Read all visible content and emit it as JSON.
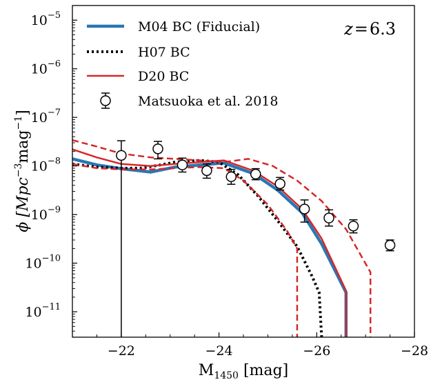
{
  "chart_data": {
    "type": "line",
    "annotation": {
      "prefix": "z",
      "eq": "=",
      "value": "6.3"
    },
    "xlabel": {
      "main": "M",
      "sub": "1450",
      "rest": " [mag]"
    },
    "ylabel": {
      "pre": "ϕ [Mpc",
      "sup1": "−3",
      "mid": "mag",
      "sup2": "−1",
      "post": "]"
    },
    "xlim": [
      -21,
      -28
    ],
    "ylim": [
      3e-12,
      2e-05
    ],
    "yscale": "log",
    "xticks": [
      -22,
      -24,
      -26,
      -28
    ],
    "xtick_labels": [
      "−22",
      "−24",
      "−26",
      "−28"
    ],
    "yticks": [
      {
        "base": "10",
        "exp": "−11",
        "value": 1e-11
      },
      {
        "base": "10",
        "exp": "−10",
        "value": 1e-10
      },
      {
        "base": "10",
        "exp": "−9",
        "value": 1e-09
      },
      {
        "base": "10",
        "exp": "−8",
        "value": 1e-08
      },
      {
        "base": "10",
        "exp": "−7",
        "value": 1e-07
      },
      {
        "base": "10",
        "exp": "−6",
        "value": 1e-06
      },
      {
        "base": "10",
        "exp": "−5",
        "value": 1e-05
      }
    ],
    "legend_position": "top-left",
    "series": [
      {
        "name": "M04 BC (Fiducial)",
        "style": "solid",
        "color": "#2a77b4",
        "width": 4.5,
        "x": [
          -21,
          -21.5,
          -22,
          -22.6,
          -23.1,
          -23.6,
          -24.1,
          -24.7,
          -25.2,
          -25.7,
          -26.1,
          -26.6,
          -26.6
        ],
        "y": [
          1.4e-08,
          1.05e-08,
          8.8e-09,
          7.5e-09,
          9.5e-09,
          1.05e-08,
          1.15e-08,
          7e-09,
          3.2e-09,
          1.1e-09,
          2.5e-10,
          2.5e-11,
          3e-12
        ]
      },
      {
        "name": "H07 BC",
        "style": "dotted",
        "color": "#000000",
        "width": 4,
        "x": [
          -21,
          -21.5,
          -22,
          -22.4,
          -22.8,
          -23.1,
          -23.6,
          -24.0,
          -24.4,
          -24.8,
          -25.2,
          -25.6,
          -25.9,
          -26.05,
          -26.1
        ],
        "y": [
          1.1e-08,
          9.5e-09,
          9e-09,
          9e-09,
          1.05e-08,
          1.2e-08,
          1.3e-08,
          1.2e-08,
          6.5e-09,
          2.4e-09,
          7.5e-10,
          2.2e-10,
          5.5e-11,
          2.5e-11,
          3e-12
        ]
      },
      {
        "name": "D20 BC",
        "style": "solid",
        "color": "#d62728",
        "width": 2.5,
        "x": [
          -21,
          -21.5,
          -22,
          -22.6,
          -23.1,
          -23.6,
          -24.1,
          -24.7,
          -25.2,
          -25.7,
          -26.1,
          -26.6,
          -26.6
        ],
        "y": [
          2.2e-08,
          1.5e-08,
          1.1e-08,
          1e-08,
          1.1e-08,
          1.2e-08,
          1.3e-08,
          8e-09,
          3.8e-09,
          1.3e-09,
          3.2e-10,
          2.7e-11,
          3e-12
        ]
      },
      {
        "name": "",
        "style": "dashed",
        "color": "#d62728",
        "width": 2.5,
        "x": [
          -21,
          -21.5,
          -22,
          -22.6,
          -23.1,
          -23.6,
          -24.1,
          -24.5,
          -25.0,
          -25.4,
          -25.6,
          -25.6
        ],
        "y": [
          1.1e-08,
          9e-09,
          8.5e-09,
          8.5e-09,
          9e-09,
          9.5e-09,
          9e-09,
          5e-09,
          1.6e-09,
          4.5e-10,
          2e-10,
          3e-12
        ]
      },
      {
        "name": "",
        "style": "dashed",
        "color": "#d62728",
        "width": 2.5,
        "x": [
          -21,
          -21.5,
          -22,
          -22.6,
          -23.1,
          -23.6,
          -24.1,
          -24.6,
          -25.1,
          -25.6,
          -26.1,
          -26.6,
          -27.1,
          -27.1
        ],
        "y": [
          3.4e-08,
          2.5e-08,
          1.8e-08,
          1.5e-08,
          1.4e-08,
          1.3e-08,
          1.2e-08,
          1.4e-08,
          1e-08,
          5e-09,
          1.9e-09,
          5e-10,
          6.5e-11,
          3e-12
        ]
      }
    ],
    "observations": {
      "name": "Matsuoka et al. 2018",
      "points": [
        {
          "x": -22.0,
          "y": 1.65e-08,
          "yerr_low": 3e-12,
          "yerr_high": 3.3e-08
        },
        {
          "x": -22.75,
          "y": 2.25e-08,
          "yerr_low": 1.4e-08,
          "yerr_high": 3.2e-08
        },
        {
          "x": -23.25,
          "y": 1.05e-08,
          "yerr_low": 7.5e-09,
          "yerr_high": 1.45e-08
        },
        {
          "x": -23.75,
          "y": 8e-09,
          "yerr_low": 5.6e-09,
          "yerr_high": 1.1e-08
        },
        {
          "x": -24.25,
          "y": 6e-09,
          "yerr_low": 4.2e-09,
          "yerr_high": 8.5e-09
        },
        {
          "x": -24.75,
          "y": 6.8e-09,
          "yerr_low": 5.2e-09,
          "yerr_high": 8.8e-09
        },
        {
          "x": -25.25,
          "y": 4.3e-09,
          "yerr_low": 3.2e-09,
          "yerr_high": 5.8e-09
        },
        {
          "x": -25.75,
          "y": 1.3e-09,
          "yerr_low": 7e-10,
          "yerr_high": 2e-09
        },
        {
          "x": -26.25,
          "y": 8.5e-10,
          "yerr_low": 5.8e-10,
          "yerr_high": 1.25e-09
        },
        {
          "x": -26.75,
          "y": 5.8e-10,
          "yerr_low": 4.2e-10,
          "yerr_high": 7.8e-10
        },
        {
          "x": -27.5,
          "y": 2.35e-10,
          "yerr_low": 1.8e-10,
          "yerr_high": 3e-10
        }
      ]
    }
  }
}
